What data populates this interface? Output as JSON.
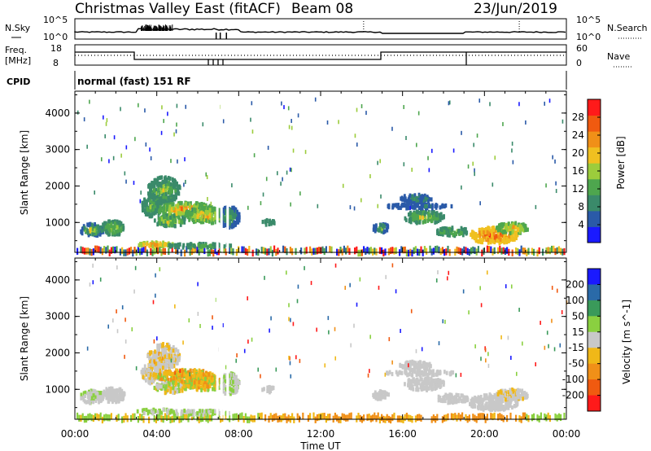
{
  "header": {
    "station": "Christmas Valley East (fitACF)",
    "beam": "Beam 08",
    "date": "23/Jun/2019"
  },
  "panel_labels": {
    "nsky": "N.Sky",
    "freq_line1": "Freq.",
    "freq_line2": "[MHz]",
    "cpid": "CPID",
    "nsearch": "N.Search",
    "nave": "Nave",
    "cpid_text": "normal (fast) 151 RF"
  },
  "noise_axis": {
    "left": [
      "10^5",
      "10^0"
    ],
    "right": [
      "10^5",
      "10^0"
    ]
  },
  "freq_axis": {
    "left": [
      "18",
      "8"
    ],
    "right": [
      "60",
      "0"
    ]
  },
  "colors": {
    "power_scale": [
      "#1a1aff",
      "#2a5aa8",
      "#3a8a6a",
      "#4ea64e",
      "#9ccc3c",
      "#f0c020",
      "#f09018",
      "#f05a10",
      "#ff1a1a"
    ],
    "velocity_scale": [
      "#ff1a1a",
      "#f05a10",
      "#f09018",
      "#f0b818",
      "#c8c8c8",
      "#8ad040",
      "#3a9a5a",
      "#2a6aa8",
      "#1a1aff"
    ]
  },
  "chart_data": [
    {
      "type": "heatmap",
      "name": "power",
      "xlabel": "Time UT",
      "ylabel": "Slant Range [km]",
      "xlim": [
        "00:00",
        "24:00"
      ],
      "ylim": [
        180,
        4600
      ],
      "x_ticks": [
        "00:00",
        "04:00",
        "08:00",
        "12:00",
        "16:00",
        "20:00",
        "00:00"
      ],
      "y_ticks": [
        "1000",
        "2000",
        "3000",
        "4000"
      ],
      "colorbar": {
        "label": "Power [dB]",
        "ticks": [
          "4",
          "8",
          "12",
          "16",
          "20",
          "24",
          "28"
        ],
        "range": [
          0,
          32
        ]
      }
    },
    {
      "type": "heatmap",
      "name": "velocity",
      "xlabel": "Time UT",
      "ylabel": "Slant Range [km]",
      "xlim": [
        "00:00",
        "24:00"
      ],
      "ylim": [
        180,
        4600
      ],
      "x_ticks": [
        "00:00",
        "04:00",
        "08:00",
        "12:00",
        "16:00",
        "20:00",
        "00:00"
      ],
      "y_ticks": [
        "1000",
        "2000",
        "3000",
        "4000"
      ],
      "colorbar": {
        "label": "Velocity [m s^-1]",
        "ticks": [
          "200",
          "100",
          "50",
          "15",
          "-15",
          "-50",
          "-100",
          "-200"
        ]
      }
    }
  ]
}
